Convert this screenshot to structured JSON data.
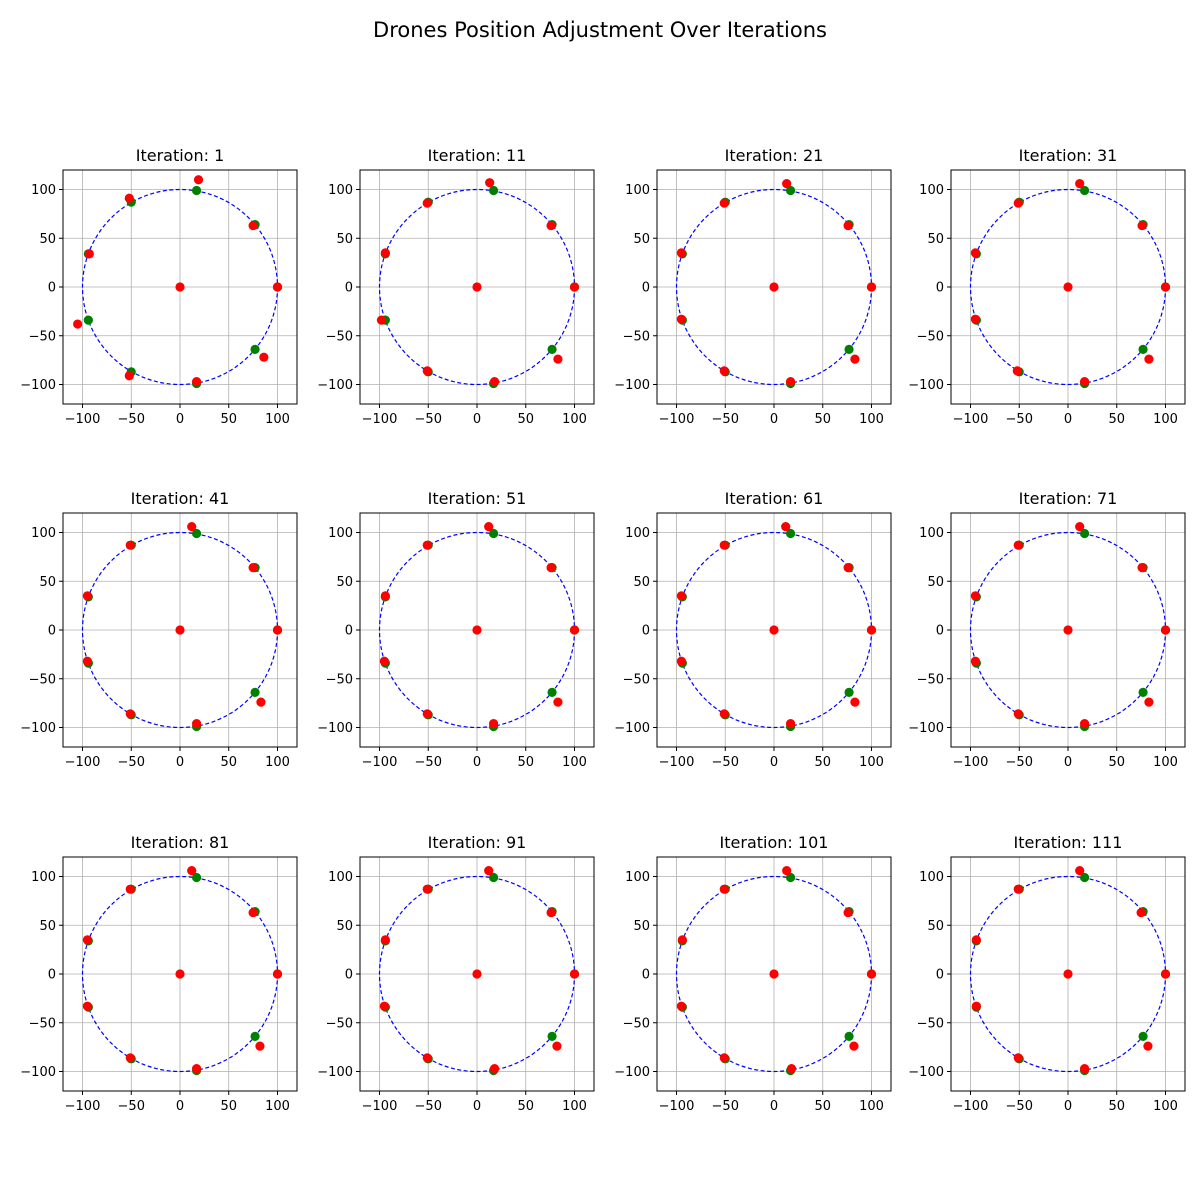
{
  "title": "Drones Position Adjustment Over Iterations",
  "colors": {
    "target": "#008000",
    "actual": "#ff0000",
    "circle": "#0000ff",
    "grid": "#b0b0b0"
  },
  "chart_data": {
    "type": "scatter",
    "title": "Drones Position Adjustment Over Iterations",
    "layout": "3 rows x 4 columns grid of subplots",
    "xlim": [
      -120,
      120
    ],
    "ylim": [
      -120,
      120
    ],
    "xticks": [
      -100,
      -50,
      0,
      50,
      100
    ],
    "yticks": [
      -100,
      -50,
      0,
      50,
      100
    ],
    "grid": true,
    "reference_circle": {
      "radius": 100,
      "center": [
        0,
        0
      ],
      "style": "dashed"
    },
    "target_positions": [
      [
        17,
        99
      ],
      [
        77,
        64
      ],
      [
        100,
        0
      ],
      [
        77,
        -64
      ],
      [
        17,
        -99
      ],
      [
        -50,
        -87
      ],
      [
        -94,
        -34
      ],
      [
        -94,
        34
      ],
      [
        -50,
        87
      ]
    ],
    "subplots": [
      {
        "label": "Iteration: 1",
        "actual_positions": [
          [
            0,
            0
          ],
          [
            19,
            110
          ],
          [
            75,
            63
          ],
          [
            100,
            0
          ],
          [
            86,
            -72
          ],
          [
            17,
            -97
          ],
          [
            -52,
            -91
          ],
          [
            -105,
            -38
          ],
          [
            -93,
            34
          ],
          [
            -52,
            91
          ]
        ]
      },
      {
        "label": "Iteration: 11",
        "actual_positions": [
          [
            0,
            0
          ],
          [
            13,
            107
          ],
          [
            76,
            63
          ],
          [
            100,
            0
          ],
          [
            83,
            -74
          ],
          [
            18,
            -97
          ],
          [
            -51,
            -86
          ],
          [
            -98,
            -34
          ],
          [
            -94,
            35
          ],
          [
            -51,
            86
          ]
        ]
      },
      {
        "label": "Iteration: 21",
        "actual_positions": [
          [
            0,
            0
          ],
          [
            13,
            106
          ],
          [
            76,
            63
          ],
          [
            100,
            0
          ],
          [
            83,
            -74
          ],
          [
            17,
            -97
          ],
          [
            -51,
            -86
          ],
          [
            -95,
            -33
          ],
          [
            -95,
            35
          ],
          [
            -51,
            86
          ]
        ]
      },
      {
        "label": "Iteration: 31",
        "actual_positions": [
          [
            0,
            0
          ],
          [
            12,
            106
          ],
          [
            76,
            63
          ],
          [
            100,
            0
          ],
          [
            83,
            -74
          ],
          [
            17,
            -97
          ],
          [
            -52,
            -86
          ],
          [
            -95,
            -33
          ],
          [
            -95,
            35
          ],
          [
            -51,
            86
          ]
        ]
      },
      {
        "label": "Iteration: 41",
        "actual_positions": [
          [
            0,
            0
          ],
          [
            12,
            106
          ],
          [
            75,
            64
          ],
          [
            100,
            0
          ],
          [
            83,
            -74
          ],
          [
            17,
            -96
          ],
          [
            -51,
            -86
          ],
          [
            -95,
            -32
          ],
          [
            -95,
            35
          ],
          [
            -51,
            87
          ]
        ]
      },
      {
        "label": "Iteration: 51",
        "actual_positions": [
          [
            0,
            0
          ],
          [
            12,
            106
          ],
          [
            76,
            64
          ],
          [
            100,
            0
          ],
          [
            83,
            -74
          ],
          [
            17,
            -96
          ],
          [
            -51,
            -86
          ],
          [
            -95,
            -32
          ],
          [
            -94,
            35
          ],
          [
            -51,
            87
          ]
        ]
      },
      {
        "label": "Iteration: 61",
        "actual_positions": [
          [
            0,
            0
          ],
          [
            12,
            106
          ],
          [
            76,
            64
          ],
          [
            100,
            0
          ],
          [
            83,
            -74
          ],
          [
            17,
            -96
          ],
          [
            -51,
            -86
          ],
          [
            -95,
            -32
          ],
          [
            -95,
            35
          ],
          [
            -51,
            87
          ]
        ]
      },
      {
        "label": "Iteration: 71",
        "actual_positions": [
          [
            0,
            0
          ],
          [
            12,
            106
          ],
          [
            76,
            64
          ],
          [
            100,
            0
          ],
          [
            83,
            -74
          ],
          [
            17,
            -96
          ],
          [
            -51,
            -86
          ],
          [
            -95,
            -32
          ],
          [
            -95,
            35
          ],
          [
            -51,
            87
          ]
        ]
      },
      {
        "label": "Iteration: 81",
        "actual_positions": [
          [
            0,
            0
          ],
          [
            12,
            106
          ],
          [
            75,
            63
          ],
          [
            100,
            0
          ],
          [
            82,
            -74
          ],
          [
            17,
            -97
          ],
          [
            -51,
            -86
          ],
          [
            -95,
            -33
          ],
          [
            -95,
            35
          ],
          [
            -51,
            87
          ]
        ]
      },
      {
        "label": "Iteration: 91",
        "actual_positions": [
          [
            0,
            0
          ],
          [
            12,
            106
          ],
          [
            76,
            63
          ],
          [
            100,
            0
          ],
          [
            82,
            -74
          ],
          [
            18,
            -97
          ],
          [
            -51,
            -86
          ],
          [
            -95,
            -33
          ],
          [
            -94,
            35
          ],
          [
            -51,
            87
          ]
        ]
      },
      {
        "label": "Iteration: 101",
        "actual_positions": [
          [
            0,
            0
          ],
          [
            13,
            106
          ],
          [
            76,
            63
          ],
          [
            100,
            0
          ],
          [
            82,
            -74
          ],
          [
            18,
            -97
          ],
          [
            -51,
            -86
          ],
          [
            -95,
            -33
          ],
          [
            -94,
            35
          ],
          [
            -51,
            87
          ]
        ]
      },
      {
        "label": "Iteration: 111",
        "actual_positions": [
          [
            0,
            0
          ],
          [
            12,
            106
          ],
          [
            75,
            63
          ],
          [
            100,
            0
          ],
          [
            82,
            -74
          ],
          [
            17,
            -97
          ],
          [
            -51,
            -86
          ],
          [
            -94,
            -33
          ],
          [
            -94,
            35
          ],
          [
            -51,
            87
          ]
        ]
      }
    ]
  }
}
